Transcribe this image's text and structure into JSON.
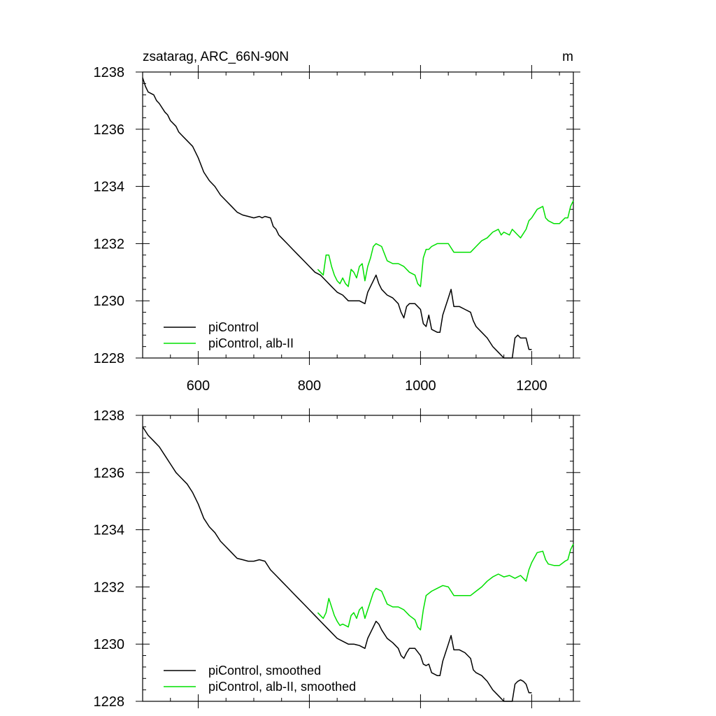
{
  "figure": {
    "title_left": "zsatarag, ARC_66N-90N",
    "title_right": "m"
  },
  "colors": {
    "control": "#000000",
    "experiment": "#00e000"
  },
  "chart_data": [
    {
      "type": "line",
      "xlim": [
        500,
        1275
      ],
      "ylim": [
        1228,
        1238
      ],
      "xticks": [
        600,
        800,
        1000,
        1200
      ],
      "xtick_labels": [
        "600",
        "800",
        "1000",
        "1200"
      ],
      "yticks": [
        1228,
        1230,
        1232,
        1234,
        1236,
        1238
      ],
      "ytick_labels": [
        "1228",
        "1230",
        "1232",
        "1234",
        "1236",
        "1238"
      ],
      "legend_position": "bottom-left",
      "series": [
        {
          "name": "piControl",
          "color": "#000000",
          "x": [
            500,
            505,
            510,
            520,
            525,
            530,
            540,
            545,
            550,
            560,
            565,
            570,
            580,
            590,
            600,
            610,
            620,
            630,
            640,
            650,
            660,
            670,
            680,
            690,
            700,
            710,
            715,
            720,
            730,
            735,
            740,
            745,
            750,
            760,
            770,
            780,
            790,
            800,
            810,
            820,
            830,
            840,
            850,
            860,
            870,
            880,
            890,
            900,
            905,
            910,
            915,
            920,
            925,
            930,
            940,
            950,
            960,
            965,
            970,
            975,
            980,
            990,
            1000,
            1005,
            1010,
            1015,
            1020,
            1030,
            1035,
            1040,
            1050,
            1055,
            1060,
            1070,
            1080,
            1090,
            1095,
            1100,
            1110,
            1120,
            1130,
            1140,
            1150,
            1160,
            1165,
            1170,
            1175,
            1180,
            1185,
            1190,
            1195,
            1200
          ],
          "values": [
            1237.8,
            1237.5,
            1237.3,
            1237.2,
            1237.0,
            1236.9,
            1236.6,
            1236.5,
            1236.3,
            1236.1,
            1235.9,
            1235.8,
            1235.6,
            1235.4,
            1235.0,
            1234.5,
            1234.2,
            1234.0,
            1233.7,
            1233.5,
            1233.3,
            1233.1,
            1233.0,
            1232.95,
            1232.9,
            1232.95,
            1232.9,
            1232.95,
            1232.9,
            1232.6,
            1232.5,
            1232.3,
            1232.2,
            1232.0,
            1231.8,
            1231.6,
            1231.4,
            1231.2,
            1231.0,
            1230.9,
            1230.7,
            1230.5,
            1230.3,
            1230.2,
            1230.0,
            1230.0,
            1230.0,
            1229.9,
            1230.3,
            1230.5,
            1230.7,
            1230.9,
            1230.6,
            1230.4,
            1230.2,
            1230.1,
            1229.9,
            1229.6,
            1229.4,
            1229.8,
            1229.9,
            1229.9,
            1229.7,
            1229.2,
            1229.1,
            1229.5,
            1229.0,
            1228.9,
            1228.9,
            1229.5,
            1230.1,
            1230.4,
            1229.8,
            1229.8,
            1229.7,
            1229.6,
            1229.3,
            1229.1,
            1228.9,
            1228.7,
            1228.4,
            1228.2,
            1228.0,
            1228.0,
            1228.0,
            1228.7,
            1228.8,
            1228.7,
            1228.7,
            1228.7,
            1228.3,
            1228.3
          ]
        },
        {
          "name": "piControl, alb-II",
          "color": "#00e000",
          "x": [
            815,
            820,
            825,
            830,
            835,
            840,
            845,
            850,
            855,
            860,
            865,
            870,
            875,
            880,
            885,
            890,
            895,
            900,
            905,
            910,
            915,
            920,
            930,
            940,
            950,
            960,
            970,
            980,
            990,
            995,
            1000,
            1005,
            1010,
            1015,
            1020,
            1030,
            1040,
            1050,
            1060,
            1070,
            1080,
            1090,
            1100,
            1110,
            1120,
            1130,
            1140,
            1145,
            1150,
            1160,
            1165,
            1170,
            1175,
            1180,
            1190,
            1195,
            1200,
            1210,
            1220,
            1225,
            1230,
            1240,
            1250,
            1260,
            1265,
            1270,
            1275
          ],
          "values": [
            1231.1,
            1231.0,
            1230.9,
            1231.6,
            1231.6,
            1231.2,
            1230.9,
            1230.7,
            1230.6,
            1230.8,
            1230.6,
            1230.5,
            1231.1,
            1231.0,
            1230.8,
            1231.2,
            1231.3,
            1230.7,
            1231.2,
            1231.5,
            1231.9,
            1232.0,
            1231.9,
            1231.4,
            1231.3,
            1231.3,
            1231.2,
            1231.0,
            1230.9,
            1230.6,
            1230.5,
            1231.5,
            1231.8,
            1231.8,
            1231.9,
            1232.0,
            1232.0,
            1232.0,
            1231.7,
            1231.7,
            1231.7,
            1231.7,
            1231.9,
            1232.1,
            1232.2,
            1232.4,
            1232.5,
            1232.3,
            1232.4,
            1232.3,
            1232.5,
            1232.4,
            1232.3,
            1232.2,
            1232.5,
            1232.8,
            1232.9,
            1233.2,
            1233.3,
            1232.9,
            1232.8,
            1232.7,
            1232.7,
            1232.9,
            1232.9,
            1233.3,
            1233.5
          ]
        }
      ]
    },
    {
      "type": "line",
      "xlim": [
        500,
        1275
      ],
      "ylim": [
        1228,
        1238
      ],
      "xticks": [
        600,
        800,
        1000,
        1200
      ],
      "yticks": [
        1228,
        1230,
        1232,
        1234,
        1236,
        1238
      ],
      "ytick_labels": [
        "1228",
        "1230",
        "1232",
        "1234",
        "1236",
        "1238"
      ],
      "legend_position": "bottom-left",
      "series": [
        {
          "name": "piControl, smoothed",
          "color": "#000000",
          "x": [
            500,
            510,
            520,
            530,
            540,
            550,
            560,
            570,
            580,
            590,
            600,
            610,
            620,
            630,
            640,
            650,
            660,
            670,
            680,
            690,
            700,
            710,
            720,
            730,
            740,
            750,
            760,
            770,
            780,
            790,
            800,
            810,
            820,
            830,
            840,
            850,
            860,
            870,
            880,
            890,
            900,
            905,
            910,
            915,
            920,
            925,
            930,
            940,
            950,
            960,
            965,
            970,
            975,
            980,
            990,
            1000,
            1005,
            1010,
            1015,
            1020,
            1030,
            1035,
            1040,
            1050,
            1055,
            1060,
            1070,
            1080,
            1090,
            1095,
            1100,
            1110,
            1120,
            1130,
            1140,
            1150,
            1160,
            1165,
            1170,
            1175,
            1180,
            1185,
            1190,
            1195,
            1200
          ],
          "values": [
            1237.6,
            1237.3,
            1237.1,
            1236.9,
            1236.6,
            1236.3,
            1236.0,
            1235.8,
            1235.6,
            1235.3,
            1234.9,
            1234.4,
            1234.1,
            1233.9,
            1233.6,
            1233.4,
            1233.2,
            1233.0,
            1232.95,
            1232.9,
            1232.9,
            1232.95,
            1232.9,
            1232.6,
            1232.4,
            1232.2,
            1232.0,
            1231.8,
            1231.6,
            1231.4,
            1231.2,
            1231.0,
            1230.8,
            1230.6,
            1230.4,
            1230.2,
            1230.1,
            1230.0,
            1230.0,
            1229.95,
            1229.85,
            1230.2,
            1230.4,
            1230.6,
            1230.8,
            1230.7,
            1230.5,
            1230.2,
            1230.05,
            1229.85,
            1229.6,
            1229.5,
            1229.7,
            1229.85,
            1229.85,
            1229.6,
            1229.3,
            1229.25,
            1229.3,
            1229.0,
            1228.9,
            1228.9,
            1229.4,
            1230.0,
            1230.3,
            1229.8,
            1229.8,
            1229.7,
            1229.5,
            1229.1,
            1229.0,
            1228.9,
            1228.7,
            1228.4,
            1228.2,
            1228.0,
            1228.0,
            1228.0,
            1228.6,
            1228.7,
            1228.75,
            1228.7,
            1228.6,
            1228.3,
            1228.3
          ]
        },
        {
          "name": "piControl, alb-II, smoothed",
          "color": "#00e000",
          "x": [
            815,
            820,
            825,
            830,
            835,
            840,
            845,
            850,
            855,
            860,
            865,
            870,
            875,
            880,
            885,
            890,
            895,
            900,
            905,
            910,
            915,
            920,
            930,
            940,
            950,
            960,
            970,
            980,
            990,
            995,
            1000,
            1005,
            1010,
            1020,
            1030,
            1040,
            1050,
            1060,
            1070,
            1080,
            1090,
            1100,
            1110,
            1120,
            1130,
            1140,
            1150,
            1160,
            1170,
            1180,
            1190,
            1195,
            1200,
            1210,
            1220,
            1225,
            1230,
            1240,
            1250,
            1260,
            1265,
            1270,
            1275
          ],
          "values": [
            1231.1,
            1231.0,
            1230.9,
            1231.1,
            1231.6,
            1231.3,
            1231.0,
            1230.8,
            1230.65,
            1230.7,
            1230.65,
            1230.6,
            1231.0,
            1231.1,
            1230.9,
            1231.2,
            1231.3,
            1230.9,
            1231.2,
            1231.5,
            1231.8,
            1231.95,
            1231.85,
            1231.4,
            1231.3,
            1231.3,
            1231.2,
            1231.0,
            1230.85,
            1230.6,
            1230.5,
            1231.2,
            1231.7,
            1231.85,
            1231.95,
            1232.05,
            1232.0,
            1231.7,
            1231.7,
            1231.7,
            1231.7,
            1231.85,
            1232.0,
            1232.2,
            1232.35,
            1232.45,
            1232.35,
            1232.4,
            1232.3,
            1232.4,
            1232.2,
            1232.6,
            1232.85,
            1233.2,
            1233.25,
            1232.95,
            1232.8,
            1232.75,
            1232.75,
            1232.9,
            1232.95,
            1233.3,
            1233.5
          ]
        }
      ]
    }
  ]
}
